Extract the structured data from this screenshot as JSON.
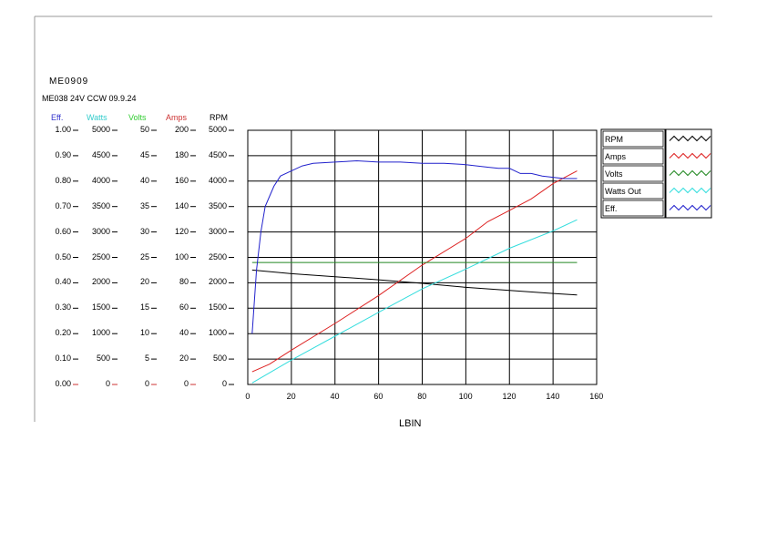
{
  "header": {
    "title": "ME0909",
    "subtitle": "ME038 24V CCW 09.9.24"
  },
  "axis_headers": [
    {
      "label": "Eff.",
      "color": "#3333cc"
    },
    {
      "label": "Watts",
      "color": "#33cccc"
    },
    {
      "label": "Volts",
      "color": "#33cc33"
    },
    {
      "label": "Amps",
      "color": "#cc3333"
    },
    {
      "label": "RPM",
      "color": "#000000"
    }
  ],
  "legend": [
    {
      "label": "RPM",
      "color": "#000000"
    },
    {
      "label": "Amps",
      "color": "#dd2222"
    },
    {
      "label": "Volts",
      "color": "#228822"
    },
    {
      "label": "Watts Out",
      "color": "#33dddd"
    },
    {
      "label": "Eff.",
      "color": "#2222cc"
    }
  ],
  "chart_data": {
    "type": "line",
    "title": "ME0909",
    "subtitle": "ME038 24V CCW 09.9.24",
    "xlabel": "LBIN",
    "xlim": [
      0,
      160
    ],
    "x_ticks": [
      "0",
      "20",
      "40",
      "60",
      "80",
      "100",
      "120",
      "140",
      "160"
    ],
    "y_axes": [
      {
        "name": "Eff.",
        "ylim": [
          0,
          1.0
        ],
        "ticks": [
          "0.00",
          "0.10",
          "0.20",
          "0.30",
          "0.40",
          "0.50",
          "0.60",
          "0.70",
          "0.80",
          "0.90",
          "1.00"
        ]
      },
      {
        "name": "Watts",
        "ylim": [
          0,
          5000
        ],
        "ticks": [
          "0",
          "500",
          "1000",
          "1500",
          "2000",
          "2500",
          "3000",
          "3500",
          "4000",
          "4500",
          "5000"
        ]
      },
      {
        "name": "Volts",
        "ylim": [
          0,
          50
        ],
        "ticks": [
          "0",
          "5",
          "10",
          "15",
          "20",
          "25",
          "30",
          "35",
          "40",
          "45",
          "50"
        ]
      },
      {
        "name": "Amps",
        "ylim": [
          0,
          200
        ],
        "ticks": [
          "0",
          "20",
          "40",
          "60",
          "80",
          "100",
          "120",
          "140",
          "160",
          "180",
          "200"
        ]
      },
      {
        "name": "RPM",
        "ylim": [
          0,
          5000
        ],
        "ticks": [
          "0",
          "500",
          "1000",
          "1500",
          "2000",
          "2500",
          "3000",
          "3500",
          "4000",
          "4500",
          "5000"
        ]
      }
    ],
    "grid": true,
    "legend_position": "right",
    "series": [
      {
        "name": "RPM",
        "axis": "RPM",
        "color": "#000000",
        "x": [
          2,
          20,
          40,
          60,
          80,
          100,
          120,
          140,
          151
        ],
        "y": [
          2250,
          2180,
          2120,
          2060,
          1990,
          1910,
          1850,
          1790,
          1760
        ]
      },
      {
        "name": "Amps",
        "axis": "Amps",
        "color": "#dd2222",
        "x": [
          2,
          10,
          20,
          40,
          60,
          80,
          100,
          110,
          120,
          130,
          140,
          151
        ],
        "y": [
          10,
          16,
          27,
          48,
          70,
          94,
          115,
          128,
          137,
          146,
          158,
          168
        ]
      },
      {
        "name": "Volts",
        "axis": "Volts",
        "color": "#228822",
        "x": [
          2,
          151
        ],
        "y": [
          24,
          24
        ]
      },
      {
        "name": "Watts Out",
        "axis": "Watts",
        "color": "#33dddd",
        "x": [
          2,
          20,
          40,
          60,
          80,
          100,
          120,
          140,
          151
        ],
        "y": [
          30,
          480,
          950,
          1420,
          1880,
          2270,
          2680,
          3020,
          3240
        ]
      },
      {
        "name": "Eff.",
        "axis": "Eff.",
        "color": "#2222cc",
        "x": [
          2,
          4,
          6,
          8,
          10,
          12,
          15,
          20,
          25,
          30,
          40,
          50,
          60,
          70,
          80,
          90,
          100,
          105,
          110,
          115,
          120,
          125,
          130,
          135,
          140,
          145,
          151
        ],
        "y": [
          0.2,
          0.45,
          0.6,
          0.7,
          0.74,
          0.78,
          0.82,
          0.84,
          0.86,
          0.87,
          0.875,
          0.88,
          0.875,
          0.875,
          0.87,
          0.87,
          0.865,
          0.86,
          0.855,
          0.85,
          0.85,
          0.83,
          0.83,
          0.82,
          0.815,
          0.81,
          0.81
        ]
      }
    ]
  }
}
